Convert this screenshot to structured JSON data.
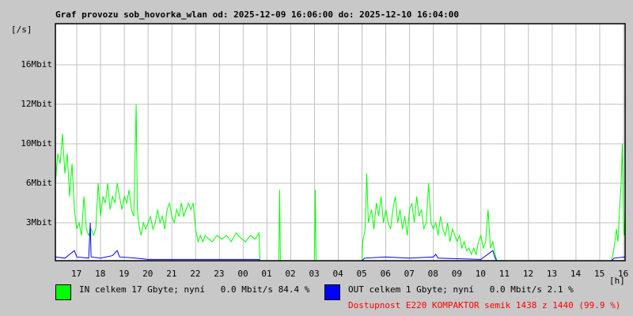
{
  "chart_data": {
    "type": "line",
    "title": "Graf provozu sob_hovorka_wlan od: 2025-12-09 16:06:00 do: 2025-12-10 16:04:00",
    "ylabel": "[/s]",
    "xlabel": "[h]",
    "y_ticks": [
      {
        "label": "16Mbit",
        "value": 16
      },
      {
        "label": "12Mbit",
        "value": 12
      },
      {
        "label": "10Mbit",
        "value": 10
      },
      {
        "label": "6Mbit",
        "value": 6
      },
      {
        "label": "3Mbit",
        "value": 3
      }
    ],
    "x_ticks": [
      "17",
      "18",
      "19",
      "20",
      "21",
      "22",
      "23",
      "00",
      "01",
      "02",
      "03",
      "04",
      "05",
      "06",
      "07",
      "08",
      "09",
      "10",
      "11",
      "12",
      "13",
      "14",
      "15",
      "16"
    ],
    "grid": true,
    "colors": {
      "in": "#00ff00",
      "out": "#0000ff"
    },
    "series": [
      {
        "name": "IN",
        "points": [
          [
            "16:06",
            6
          ],
          [
            "16:12",
            9
          ],
          [
            "16:18",
            8
          ],
          [
            "16:24",
            10.5
          ],
          [
            "16:30",
            7
          ],
          [
            "16:36",
            9
          ],
          [
            "16:42",
            5
          ],
          [
            "16:48",
            8
          ],
          [
            "16:54",
            4
          ],
          [
            "17:00",
            2.5
          ],
          [
            "17:06",
            3
          ],
          [
            "17:12",
            2
          ],
          [
            "17:18",
            5
          ],
          [
            "17:24",
            2.5
          ],
          [
            "17:30",
            2
          ],
          [
            "17:36",
            2.5
          ],
          [
            "17:42",
            2
          ],
          [
            "17:48",
            2.5
          ],
          [
            "17:54",
            6
          ],
          [
            "18:00",
            3.5
          ],
          [
            "18:06",
            5
          ],
          [
            "18:12",
            4.5
          ],
          [
            "18:18",
            6
          ],
          [
            "18:24",
            4
          ],
          [
            "18:30",
            5
          ],
          [
            "18:36",
            4.5
          ],
          [
            "18:42",
            6
          ],
          [
            "18:48",
            5
          ],
          [
            "18:54",
            4
          ],
          [
            "19:00",
            5
          ],
          [
            "19:06",
            4.5
          ],
          [
            "19:12",
            5.5
          ],
          [
            "19:18",
            4
          ],
          [
            "19:24",
            3.5
          ],
          [
            "19:30",
            12
          ],
          [
            "19:33",
            4
          ],
          [
            "19:36",
            3
          ],
          [
            "19:42",
            2
          ],
          [
            "19:48",
            3
          ],
          [
            "19:54",
            2.5
          ],
          [
            "20:00",
            3
          ],
          [
            "20:06",
            3.5
          ],
          [
            "20:12",
            2.5
          ],
          [
            "20:18",
            3
          ],
          [
            "20:24",
            4
          ],
          [
            "20:30",
            3
          ],
          [
            "20:36",
            3.5
          ],
          [
            "20:42",
            2.5
          ],
          [
            "20:48",
            4
          ],
          [
            "20:54",
            4.5
          ],
          [
            "21:00",
            3.5
          ],
          [
            "21:06",
            3
          ],
          [
            "21:12",
            4
          ],
          [
            "21:18",
            3.5
          ],
          [
            "21:24",
            4.5
          ],
          [
            "21:30",
            3.5
          ],
          [
            "21:36",
            4
          ],
          [
            "21:42",
            4.5
          ],
          [
            "21:48",
            4
          ],
          [
            "21:54",
            4.5
          ],
          [
            "22:00",
            2.5
          ],
          [
            "22:06",
            1.5
          ],
          [
            "22:12",
            2
          ],
          [
            "22:18",
            1.5
          ],
          [
            "22:24",
            2
          ],
          [
            "22:30",
            1.8
          ],
          [
            "22:42",
            1.5
          ],
          [
            "22:54",
            2
          ],
          [
            "23:06",
            1.7
          ],
          [
            "23:18",
            2
          ],
          [
            "23:30",
            1.5
          ],
          [
            "23:42",
            2.2
          ],
          [
            "23:54",
            1.8
          ],
          [
            "00:06",
            1.5
          ],
          [
            "00:18",
            2
          ],
          [
            "00:30",
            1.7
          ],
          [
            "00:40",
            2.2
          ],
          [
            "00:42",
            0
          ],
          [
            "01:30",
            0
          ],
          [
            "01:32",
            5.5
          ],
          [
            "01:34",
            0
          ],
          [
            "03:00",
            0
          ],
          [
            "03:02",
            5.5
          ],
          [
            "03:04",
            0
          ],
          [
            "05:00",
            0
          ],
          [
            "05:02",
            1.5
          ],
          [
            "05:08",
            2.5
          ],
          [
            "05:12",
            7
          ],
          [
            "05:16",
            3
          ],
          [
            "05:24",
            4
          ],
          [
            "05:30",
            2.5
          ],
          [
            "05:36",
            4.5
          ],
          [
            "05:42",
            3.5
          ],
          [
            "05:48",
            5
          ],
          [
            "05:54",
            3
          ],
          [
            "06:00",
            4
          ],
          [
            "06:06",
            3
          ],
          [
            "06:12",
            2.5
          ],
          [
            "06:18",
            4
          ],
          [
            "06:24",
            5
          ],
          [
            "06:30",
            3
          ],
          [
            "06:36",
            4
          ],
          [
            "06:42",
            2.5
          ],
          [
            "06:48",
            3.5
          ],
          [
            "06:54",
            2
          ],
          [
            "07:00",
            4
          ],
          [
            "07:06",
            4.5
          ],
          [
            "07:12",
            3
          ],
          [
            "07:18",
            5
          ],
          [
            "07:24",
            3.5
          ],
          [
            "07:30",
            4
          ],
          [
            "07:36",
            2.5
          ],
          [
            "07:42",
            3
          ],
          [
            "07:48",
            6
          ],
          [
            "07:54",
            3
          ],
          [
            "08:00",
            2.5
          ],
          [
            "08:06",
            3
          ],
          [
            "08:12",
            2
          ],
          [
            "08:18",
            3.5
          ],
          [
            "08:24",
            2.5
          ],
          [
            "08:30",
            2
          ],
          [
            "08:36",
            3
          ],
          [
            "08:42",
            1.5
          ],
          [
            "08:48",
            2.5
          ],
          [
            "08:54",
            2
          ],
          [
            "09:00",
            1.5
          ],
          [
            "09:06",
            2
          ],
          [
            "09:12",
            1
          ],
          [
            "09:18",
            1.5
          ],
          [
            "09:24",
            0.8
          ],
          [
            "09:30",
            1
          ],
          [
            "09:36",
            0.5
          ],
          [
            "09:42",
            1
          ],
          [
            "09:48",
            0.5
          ],
          [
            "09:54",
            1.5
          ],
          [
            "10:00",
            2
          ],
          [
            "10:06",
            1
          ],
          [
            "10:12",
            1.5
          ],
          [
            "10:18",
            4
          ],
          [
            "10:24",
            1
          ],
          [
            "10:30",
            1.5
          ],
          [
            "10:36",
            0.5
          ],
          [
            "10:40",
            0
          ],
          [
            "15:30",
            0
          ],
          [
            "15:36",
            1
          ],
          [
            "15:42",
            2.5
          ],
          [
            "15:46",
            1.5
          ],
          [
            "15:50",
            4
          ],
          [
            "15:54",
            6
          ],
          [
            "15:57",
            10
          ],
          [
            "16:00",
            3
          ],
          [
            "16:02",
            2
          ],
          [
            "16:04",
            4
          ]
        ]
      },
      {
        "name": "OUT",
        "points": [
          [
            "16:06",
            0.3
          ],
          [
            "16:30",
            0.2
          ],
          [
            "16:42",
            0.5
          ],
          [
            "16:54",
            0.8
          ],
          [
            "17:00",
            0.3
          ],
          [
            "17:30",
            0.2
          ],
          [
            "17:34",
            3
          ],
          [
            "17:36",
            0.3
          ],
          [
            "18:00",
            0.2
          ],
          [
            "18:30",
            0.4
          ],
          [
            "18:42",
            0.8
          ],
          [
            "18:48",
            0.3
          ],
          [
            "19:30",
            0.2
          ],
          [
            "20:00",
            0.1
          ],
          [
            "22:00",
            0.1
          ],
          [
            "00:40",
            0.1
          ],
          [
            "00:42",
            0
          ],
          [
            "05:00",
            0
          ],
          [
            "05:06",
            0.2
          ],
          [
            "06:00",
            0.3
          ],
          [
            "07:00",
            0.2
          ],
          [
            "08:00",
            0.3
          ],
          [
            "08:06",
            0.5
          ],
          [
            "08:12",
            0.2
          ],
          [
            "10:00",
            0.1
          ],
          [
            "10:30",
            0.8
          ],
          [
            "10:36",
            0.2
          ],
          [
            "10:40",
            0
          ],
          [
            "15:30",
            0
          ],
          [
            "15:36",
            0.2
          ],
          [
            "16:04",
            0.3
          ]
        ]
      }
    ]
  },
  "legend": {
    "in_text": "IN celkem 17 Gbyte; nyní   0.0 Mbit/s 84.4 %",
    "out_text": "OUT celkem 1 Gbyte; nyní   0.0 Mbit/s 2.1 %",
    "availability": "Dostupnost E220 KOMPAKTOR semik 1438 z 1440 (99.9 %)",
    "availability_color": "#ff0000"
  }
}
